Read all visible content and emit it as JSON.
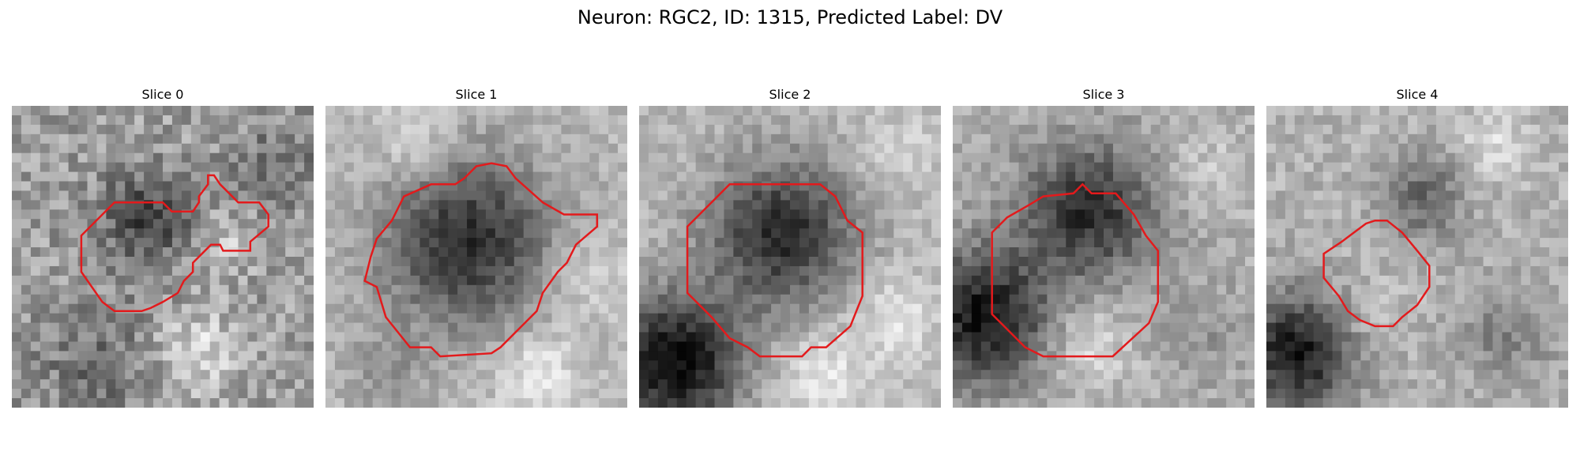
{
  "title": "Neuron: RGC2, ID: 1315, Predicted Label: DV",
  "overlay_color": "#e31a1c",
  "panels": [
    {
      "title": "Slice 0"
    },
    {
      "title": "Slice 1"
    },
    {
      "title": "Slice 2"
    },
    {
      "title": "Slice 3"
    },
    {
      "title": "Slice 4"
    }
  ]
}
